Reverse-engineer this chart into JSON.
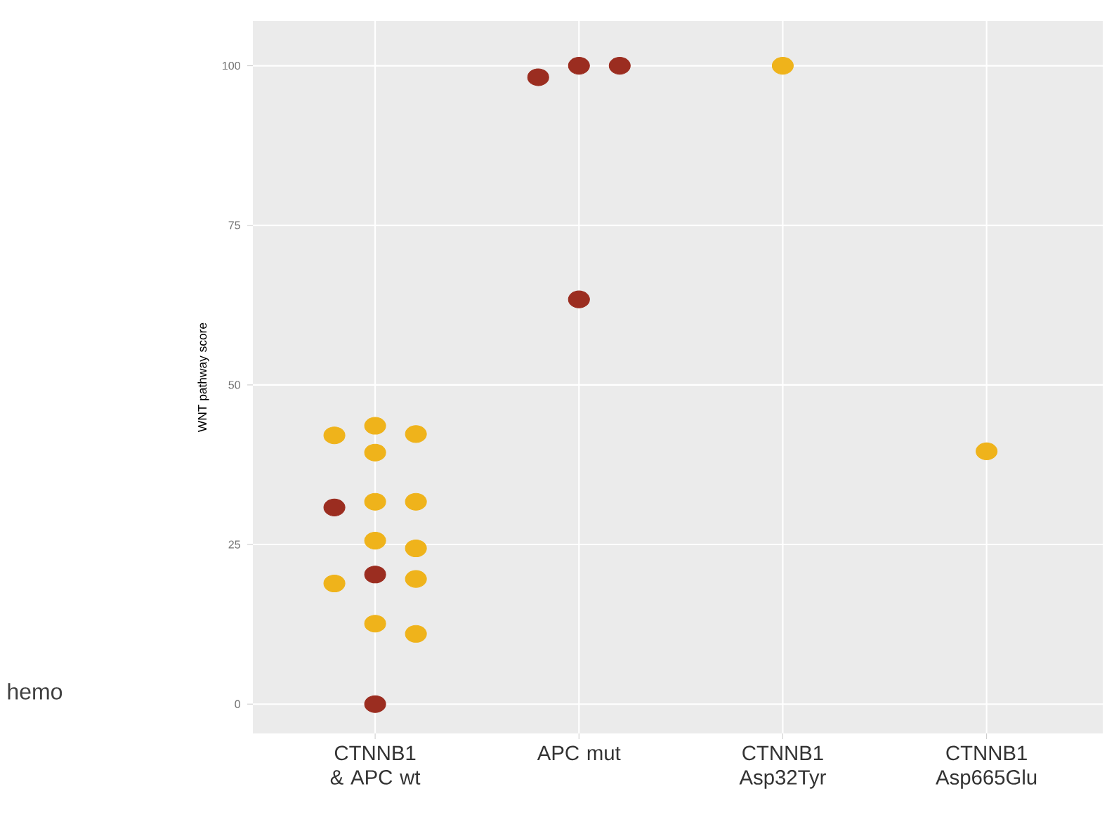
{
  "chart_data": {
    "type": "scatter",
    "ylabel": "WNT pathway score",
    "annotations": [
      "hemo"
    ],
    "categories": [
      "CTNNB1 & APC wt",
      "APC mut",
      "CTNNB1 Asp32Tyr",
      "CTNNB1 Asp665Glu"
    ],
    "ylim": [
      -4.6,
      107
    ],
    "yticks": [
      0,
      25,
      50,
      75,
      100
    ],
    "grid": true,
    "marker": "circle",
    "series": [
      {
        "color": "#efb31b",
        "x": [
          "CTNNB1 & APC wt",
          "CTNNB1 & APC wt",
          "CTNNB1 & APC wt",
          "CTNNB1 & APC wt",
          "CTNNB1 & APC wt",
          "CTNNB1 & APC wt",
          "CTNNB1 & APC wt",
          "CTNNB1 & APC wt",
          "CTNNB1 & APC wt",
          "CTNNB1 & APC wt",
          "CTNNB1 & APC wt",
          "CTNNB1 & APC wt",
          "CTNNB1 Asp32Tyr",
          "CTNNB1 Asp665Glu"
        ],
        "values": [
          43.6,
          42.3,
          39.4,
          42.1,
          31.7,
          31.7,
          24.4,
          25.6,
          18.9,
          19.6,
          11.0,
          12.6,
          100,
          39.6
        ]
      },
      {
        "color": "#9b2d20",
        "x": [
          "CTNNB1 & APC wt",
          "CTNNB1 & APC wt",
          "CTNNB1 & APC wt",
          "APC mut",
          "APC mut",
          "APC mut",
          "APC mut"
        ],
        "values": [
          30.8,
          20.3,
          0,
          100,
          98.2,
          100,
          63.4
        ]
      }
    ]
  }
}
